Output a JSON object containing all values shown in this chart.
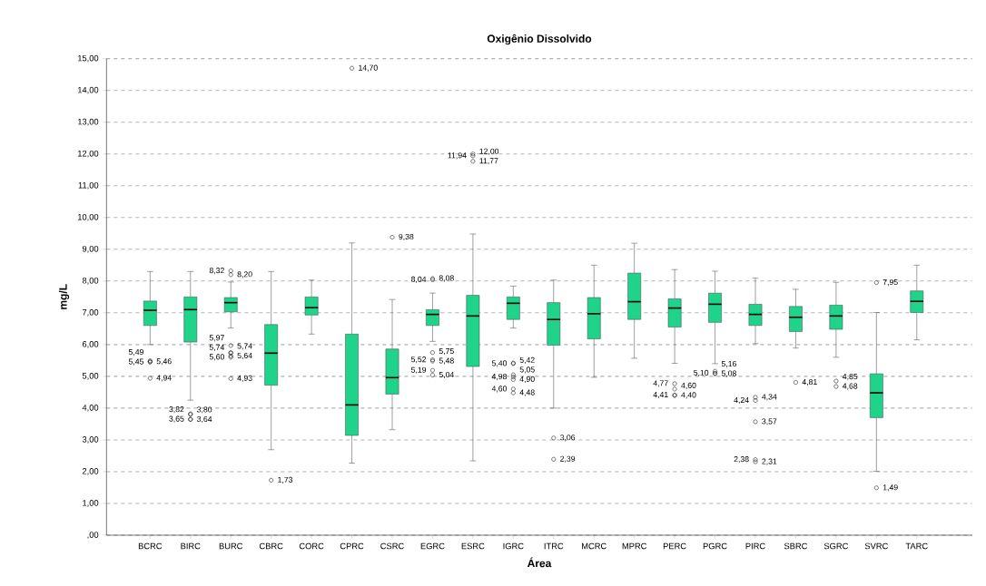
{
  "chart_data": {
    "type": "box",
    "title": "Oxigênio Dissolvido",
    "xlabel": "Área",
    "ylabel": "mg/L",
    "categories": [
      "BCRC",
      "BIRC",
      "BURC",
      "CBRC",
      "CORC",
      "CPRC",
      "CSRC",
      "EGRC",
      "ESRC",
      "IGRC",
      "ITRC",
      "MCRC",
      "MPRC",
      "PERC",
      "PGRC",
      "PIRC",
      "SBRC",
      "SGRC",
      "SVRC",
      "TARC"
    ],
    "color": "#1fd38a",
    "marker": "circle",
    "grid": "y",
    "ylim": [
      0,
      15
    ],
    "yticks": [
      {
        "value": 0,
        "label": ",00"
      },
      {
        "value": 1,
        "label": "1,00"
      },
      {
        "value": 2,
        "label": "2,00"
      },
      {
        "value": 3,
        "label": "3,00"
      },
      {
        "value": 4,
        "label": "4,00"
      },
      {
        "value": 5,
        "label": "5,00"
      },
      {
        "value": 6,
        "label": "6,00"
      },
      {
        "value": 7,
        "label": "7,00"
      },
      {
        "value": 8,
        "label": "8,00"
      },
      {
        "value": 9,
        "label": "9,00"
      },
      {
        "value": 10,
        "label": "10,00"
      },
      {
        "value": 11,
        "label": "11,00"
      },
      {
        "value": 12,
        "label": "12,00"
      },
      {
        "value": 13,
        "label": "13,00"
      },
      {
        "value": 14,
        "label": "14,00"
      },
      {
        "value": 15,
        "label": "15,00"
      }
    ],
    "boxes": [
      {
        "low": 6.0,
        "q1": 6.6,
        "median": 7.08,
        "q3": 7.37,
        "high": 8.3,
        "outliers": [
          5.45,
          5.49,
          5.46,
          4.94
        ]
      },
      {
        "low": 4.25,
        "q1": 6.08,
        "median": 7.1,
        "q3": 7.5,
        "high": 8.3,
        "outliers": [
          3.82,
          3.64,
          3.8,
          3.65
        ]
      },
      {
        "low": 6.52,
        "q1": 7.03,
        "median": 7.32,
        "q3": 7.48,
        "high": 7.97,
        "outliers": [
          8.32,
          8.2,
          5.97,
          5.74,
          5.74,
          5.64,
          5.6,
          4.93
        ]
      },
      {
        "low": 2.69,
        "q1": 4.72,
        "median": 5.73,
        "q3": 6.63,
        "high": 8.3,
        "outliers": [
          1.73
        ]
      },
      {
        "low": 6.33,
        "q1": 6.93,
        "median": 7.16,
        "q3": 7.5,
        "high": 8.03
      },
      {
        "low": 2.27,
        "q1": 3.14,
        "median": 4.1,
        "q3": 6.33,
        "high": 9.2,
        "outliers": [
          14.7
        ]
      },
      {
        "low": 3.32,
        "q1": 4.44,
        "median": 4.96,
        "q3": 5.86,
        "high": 7.42,
        "outliers": [
          9.38
        ]
      },
      {
        "low": 6.1,
        "q1": 6.6,
        "median": 6.95,
        "q3": 7.1,
        "high": 7.62,
        "outliers": [
          8.04,
          8.08,
          5.75,
          5.48,
          5.19,
          5.52,
          5.04
        ]
      },
      {
        "low": 2.34,
        "q1": 5.31,
        "median": 6.9,
        "q3": 7.55,
        "high": 9.48,
        "outliers": [
          11.94,
          12.0,
          11.77
        ]
      },
      {
        "low": 6.52,
        "q1": 6.79,
        "median": 7.3,
        "q3": 7.5,
        "high": 7.84,
        "outliers": [
          5.42,
          5.4,
          4.9,
          4.98,
          5.05,
          4.6,
          4.48
        ]
      },
      {
        "low": 4.0,
        "q1": 5.98,
        "median": 6.79,
        "q3": 7.32,
        "high": 8.03,
        "outliers": [
          3.06,
          2.39
        ]
      },
      {
        "low": 4.97,
        "q1": 6.18,
        "median": 6.97,
        "q3": 7.48,
        "high": 8.5
      },
      {
        "low": 5.57,
        "q1": 6.79,
        "median": 7.35,
        "q3": 8.25,
        "high": 9.19
      },
      {
        "low": 5.41,
        "q1": 6.55,
        "median": 7.15,
        "q3": 7.44,
        "high": 8.36,
        "outliers": [
          4.4,
          4.77,
          4.6,
          4.41
        ]
      },
      {
        "low": 5.4,
        "q1": 6.7,
        "median": 7.27,
        "q3": 7.62,
        "high": 8.31,
        "outliers": [
          5.1,
          5.08,
          5.16
        ]
      },
      {
        "low": 6.03,
        "q1": 6.6,
        "median": 6.95,
        "q3": 7.27,
        "high": 8.09,
        "outliers": [
          4.24,
          4.34,
          3.57,
          2.38,
          2.31
        ]
      },
      {
        "low": 5.89,
        "q1": 6.41,
        "median": 6.86,
        "q3": 7.2,
        "high": 7.74,
        "outliers": [
          4.81
        ]
      },
      {
        "low": 5.6,
        "q1": 6.48,
        "median": 6.9,
        "q3": 7.24,
        "high": 7.96,
        "outliers": [
          4.85,
          4.68
        ]
      },
      {
        "low": 2.01,
        "q1": 3.7,
        "median": 4.48,
        "q3": 5.08,
        "high": 7.01,
        "outliers": [
          7.95,
          1.49
        ]
      },
      {
        "low": 6.15,
        "q1": 7.01,
        "median": 7.36,
        "q3": 7.69,
        "high": 8.5
      }
    ],
    "annotations": [
      "5,45",
      "5,49",
      "5,46",
      "4,94",
      "3,82",
      "3,64",
      "3,80",
      "3,65",
      "8,32",
      "8,20",
      "5,97",
      "5,74",
      "5,74",
      "5,64",
      "5,60",
      "4,93",
      "1,73",
      "14,70",
      "9,38",
      "8,04",
      "8,08",
      "5,75",
      "5,48",
      "5,19",
      "5,52",
      "5,04",
      "11,94",
      "12,00",
      "11,77",
      "5,42",
      "5,40",
      "4,90",
      "4,98",
      "5,05",
      "4,60",
      "4,48",
      "3,06",
      "2,39",
      "4,40",
      "4,77",
      "4,60",
      "4,41",
      "5,10",
      "5,08",
      "5,16",
      "4,24",
      "4,34",
      "3,57",
      "2,38",
      "2,31",
      "4,81",
      "4,85",
      "4,68",
      "7,95",
      "1,49"
    ]
  }
}
